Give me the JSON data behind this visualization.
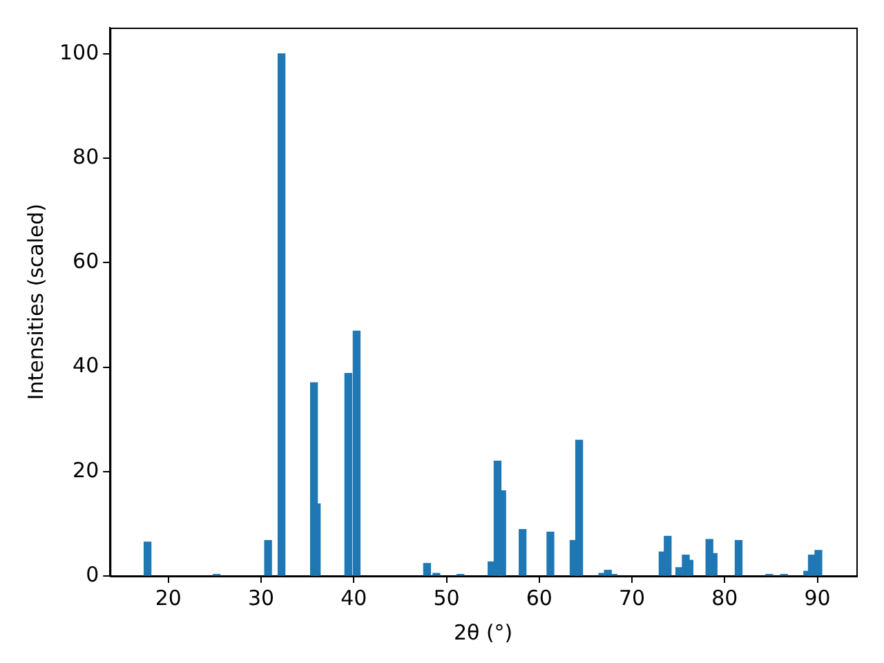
{
  "chart_data": {
    "type": "bar",
    "xlabel": "2θ (°)",
    "ylabel": "Intensities (scaled)",
    "x": [
      17.75,
      25.2,
      30.75,
      32.2,
      35.7,
      36.0,
      39.4,
      40.3,
      47.9,
      48.9,
      51.5,
      54.85,
      55.5,
      56.0,
      58.2,
      61.2,
      63.7,
      64.3,
      66.8,
      67.4,
      68.0,
      73.3,
      73.85,
      75.1,
      75.8,
      76.2,
      78.35,
      78.8,
      81.5,
      84.8,
      86.4,
      88.9,
      89.4,
      90.1
    ],
    "values": [
      6.5,
      0.3,
      6.8,
      100,
      37,
      13.8,
      38.8,
      46.9,
      2.4,
      0.5,
      0.3,
      2.7,
      22,
      16.3,
      8.9,
      8.4,
      6.8,
      26,
      0.5,
      1.1,
      0.3,
      4.6,
      7.6,
      1.6,
      4.0,
      3.0,
      7.0,
      4.3,
      6.8,
      0.3,
      0.3,
      0.9,
      4.0,
      4.9
    ],
    "color": "#1f77b4",
    "xlim": [
      13.7,
      94.2
    ],
    "xticks": [
      20,
      30,
      40,
      50,
      60,
      70,
      80,
      90
    ],
    "ylim": [
      0,
      105
    ],
    "yticks": [
      0,
      20,
      40,
      60,
      80,
      100
    ],
    "grid": false,
    "legend": false
  }
}
